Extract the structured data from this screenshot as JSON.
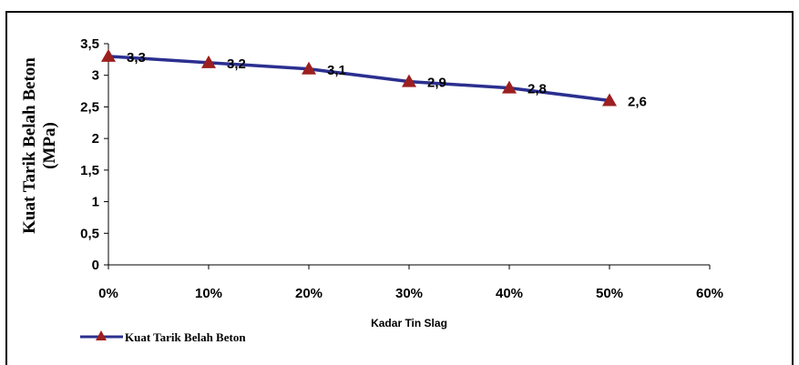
{
  "chart_data": {
    "type": "line",
    "categories": [
      "0%",
      "10%",
      "20%",
      "30%",
      "40%",
      "50%"
    ],
    "x_ticks": [
      "0%",
      "10%",
      "20%",
      "30%",
      "40%",
      "50%",
      "60%"
    ],
    "x": [
      0,
      10,
      20,
      30,
      40,
      50
    ],
    "xlim": [
      0,
      60
    ],
    "y_ticks": [
      "0",
      "0,5",
      "1",
      "1,5",
      "2",
      "2,5",
      "3",
      "3,5"
    ],
    "ylim": [
      0,
      3.5
    ],
    "series": [
      {
        "name": "Kuat Tarik Belah Beton",
        "values": [
          3.3,
          3.2,
          3.1,
          2.9,
          2.8,
          2.6
        ],
        "labels": [
          "3,3",
          "3,2",
          "3,1",
          "2,9",
          "2,8",
          "2,6"
        ]
      }
    ],
    "xlabel": "Kadar Tin Slag",
    "ylabel_line1": "Kuat Tarik Belah Beton",
    "ylabel_line2": "(MPa)",
    "grid": false,
    "legend_position": "bottom-left",
    "colors": {
      "line": "#2b2f8f",
      "marker": "#9c1f1f",
      "axis": "#000000"
    }
  }
}
